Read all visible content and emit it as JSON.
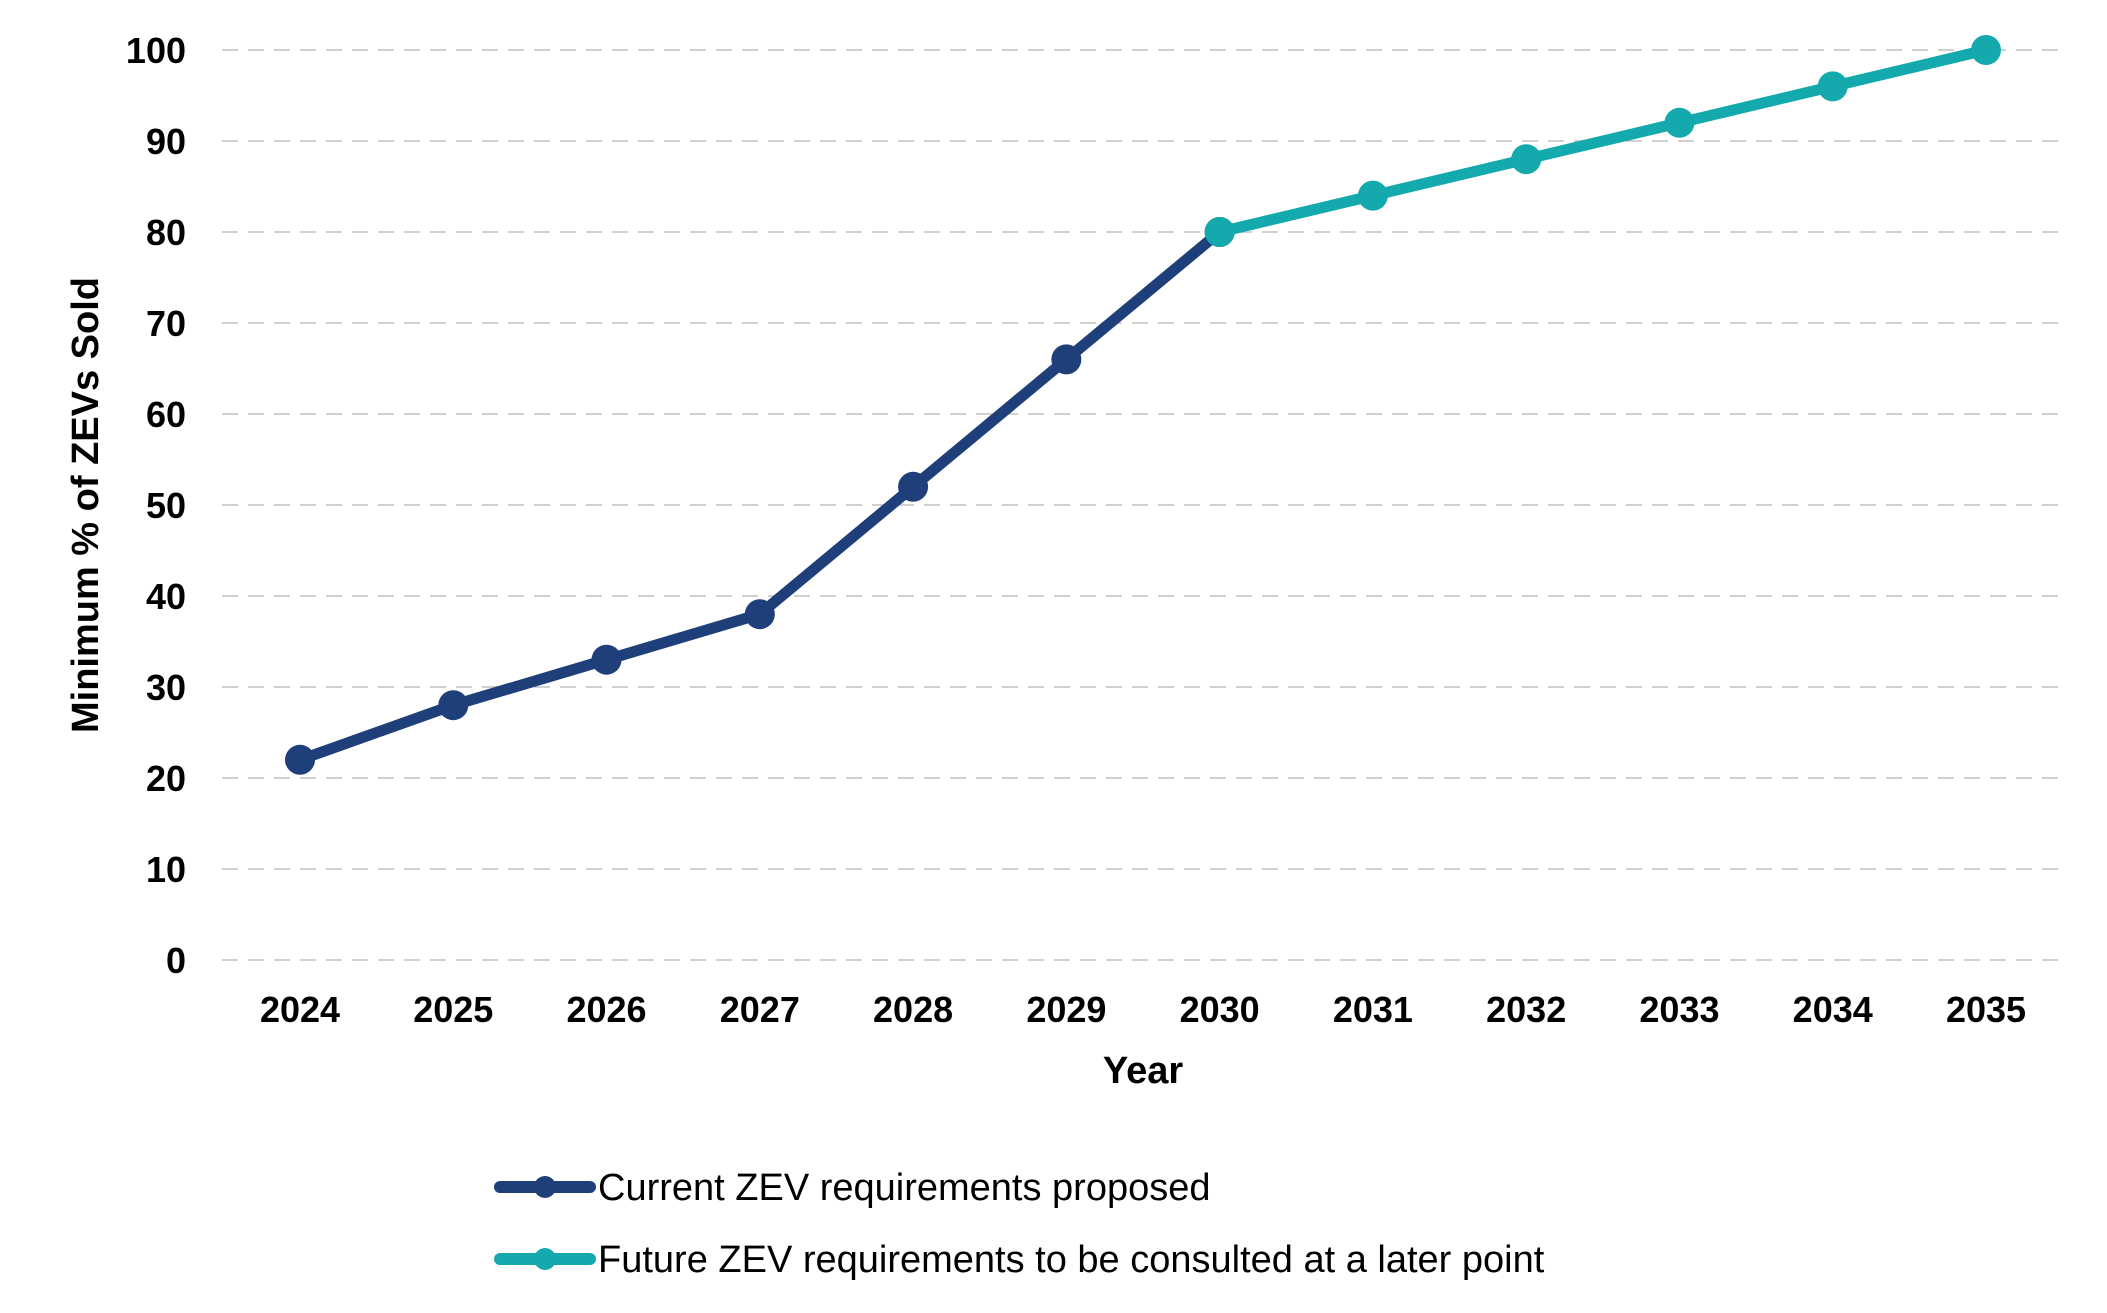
{
  "chart_data": {
    "type": "line",
    "title": "",
    "xlabel": "Year",
    "ylabel": "Minimum % of ZEVs Sold",
    "x": [
      "2024",
      "2025",
      "2026",
      "2027",
      "2028",
      "2029",
      "2030",
      "2031",
      "2032",
      "2033",
      "2034",
      "2035"
    ],
    "ylim": [
      0,
      100
    ],
    "yticks": [
      0,
      10,
      20,
      30,
      40,
      50,
      60,
      70,
      80,
      90,
      100
    ],
    "grid": "horizontal-dashed",
    "legend_position": "bottom-center",
    "series": [
      {
        "name": "Current ZEV requirements proposed",
        "color": "#1f3f7a",
        "x": [
          "2024",
          "2025",
          "2026",
          "2027",
          "2028",
          "2029",
          "2030"
        ],
        "values": [
          22,
          28,
          33,
          38,
          52,
          66,
          80
        ]
      },
      {
        "name": "Future ZEV requirements to be consulted at a later point",
        "color": "#13a9ad",
        "x": [
          "2030",
          "2031",
          "2032",
          "2033",
          "2034",
          "2035"
        ],
        "values": [
          80,
          84,
          88,
          92,
          96,
          100
        ]
      }
    ]
  }
}
